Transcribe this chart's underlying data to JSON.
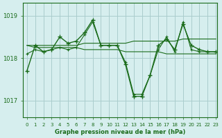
{
  "title": "Graphe pression niveau de la mer (hPa)",
  "background_color": "#d6eeee",
  "grid_color": "#aacccc",
  "line_color": "#1a6b1a",
  "text_color": "#1a6b1a",
  "xlim": [
    0,
    23
  ],
  "ylim": [
    1016.6,
    1019.3
  ],
  "yticks": [
    1017,
    1018,
    1019
  ],
  "xticks": [
    0,
    1,
    2,
    3,
    4,
    5,
    6,
    7,
    8,
    9,
    10,
    11,
    12,
    13,
    14,
    15,
    16,
    17,
    18,
    19,
    20,
    21,
    22,
    23
  ],
  "series": [
    {
      "x": [
        0,
        1,
        2,
        3,
        4,
        5,
        6,
        7,
        8,
        9,
        10,
        11,
        12,
        13,
        14,
        15,
        16,
        17,
        18,
        19,
        20,
        21,
        22,
        23
      ],
      "y": [
        1017.7,
        1018.3,
        1018.15,
        1018.2,
        1018.5,
        1018.35,
        1018.4,
        1018.6,
        1018.9,
        1018.3,
        1018.3,
        1018.3,
        1017.85,
        1017.1,
        1017.1,
        1017.6,
        1018.3,
        1018.45,
        1018.2,
        1018.8,
        1018.3,
        1018.2,
        1018.15,
        1018.15
      ]
    },
    {
      "x": [
        0,
        1,
        2,
        3,
        4,
        5,
        6,
        7,
        8,
        9,
        10,
        11,
        12,
        13,
        14,
        15,
        16,
        17,
        18,
        19,
        20,
        21,
        22,
        23
      ],
      "y": [
        1018.3,
        1018.3,
        1018.3,
        1018.3,
        1018.3,
        1018.3,
        1018.3,
        1018.35,
        1018.35,
        1018.35,
        1018.35,
        1018.35,
        1018.35,
        1018.4,
        1018.4,
        1018.4,
        1018.4,
        1018.4,
        1018.4,
        1018.45,
        1018.45,
        1018.45,
        1018.45,
        1018.45
      ]
    },
    {
      "x": [
        0,
        1,
        2,
        3,
        4,
        5,
        6,
        7,
        8,
        9,
        10,
        11,
        12,
        13,
        14,
        15,
        16,
        17,
        18,
        19,
        20,
        21,
        22,
        23
      ],
      "y": [
        1018.3,
        1018.25,
        1018.25,
        1018.25,
        1018.25,
        1018.25,
        1018.25,
        1018.2,
        1018.2,
        1018.2,
        1018.2,
        1018.2,
        1018.15,
        1018.15,
        1018.15,
        1018.15,
        1018.15,
        1018.1,
        1018.1,
        1018.1,
        1018.1,
        1018.1,
        1018.1,
        1018.1
      ]
    },
    {
      "x": [
        0,
        1,
        2,
        3,
        4,
        5,
        6,
        7,
        8,
        9,
        10,
        11,
        12,
        13,
        14,
        15,
        16,
        17,
        18,
        19,
        20,
        21,
        22,
        23
      ],
      "y": [
        1018.1,
        1018.2,
        1018.15,
        1018.2,
        1018.25,
        1018.2,
        1018.25,
        1018.55,
        1018.85,
        1018.3,
        1018.3,
        1018.3,
        1017.9,
        1017.15,
        1017.15,
        1017.6,
        1018.2,
        1018.5,
        1018.15,
        1018.85,
        1018.2,
        1018.15,
        1018.15,
        1018.15
      ]
    }
  ]
}
